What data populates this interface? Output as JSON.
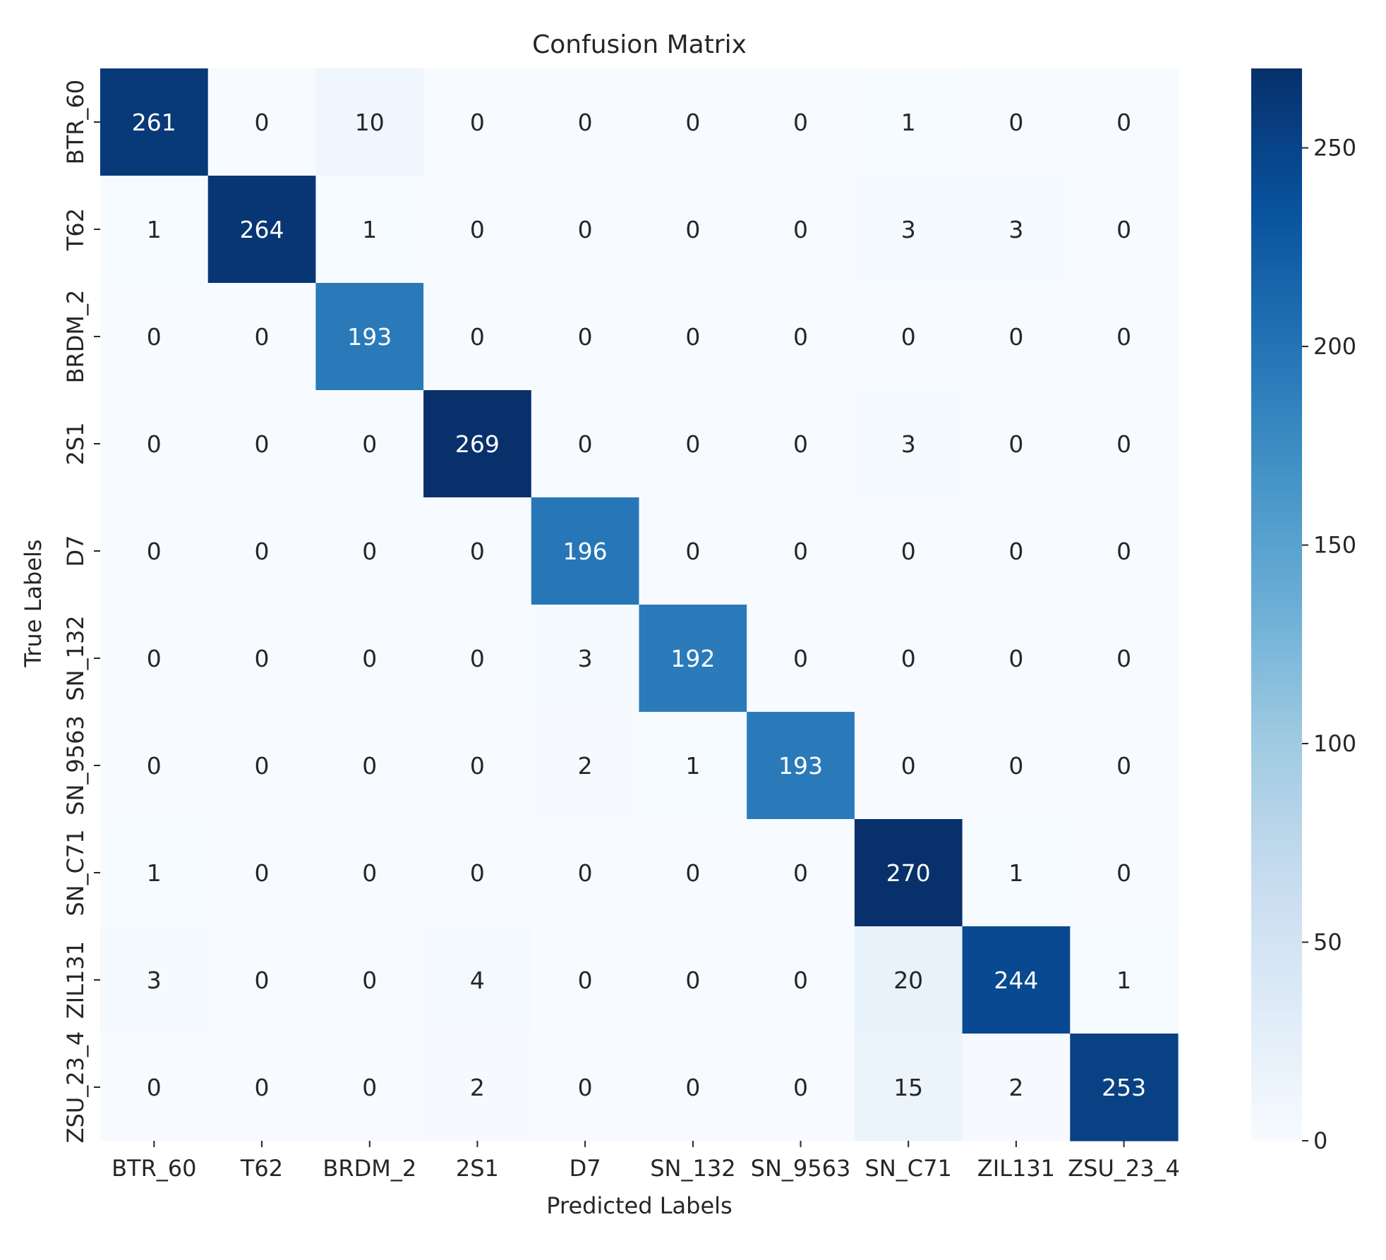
{
  "chart_data": {
    "type": "heatmap",
    "title": "Confusion Matrix",
    "xlabel": "Predicted Labels",
    "ylabel": "True Labels",
    "x_categories": [
      "BTR_60",
      "T62",
      "BRDM_2",
      "2S1",
      "D7",
      "SN_132",
      "SN_9563",
      "SN_C71",
      "ZIL131",
      "ZSU_23_4"
    ],
    "y_categories": [
      "BTR_60",
      "T62",
      "BRDM_2",
      "2S1",
      "D7",
      "SN_132",
      "SN_9563",
      "SN_C71",
      "ZIL131",
      "ZSU_23_4"
    ],
    "values": [
      [
        261,
        0,
        10,
        0,
        0,
        0,
        0,
        1,
        0,
        0
      ],
      [
        1,
        264,
        1,
        0,
        0,
        0,
        0,
        3,
        3,
        0
      ],
      [
        0,
        0,
        193,
        0,
        0,
        0,
        0,
        0,
        0,
        0
      ],
      [
        0,
        0,
        0,
        269,
        0,
        0,
        0,
        3,
        0,
        0
      ],
      [
        0,
        0,
        0,
        0,
        196,
        0,
        0,
        0,
        0,
        0
      ],
      [
        0,
        0,
        0,
        0,
        3,
        192,
        0,
        0,
        0,
        0
      ],
      [
        0,
        0,
        0,
        0,
        2,
        1,
        193,
        0,
        0,
        0
      ],
      [
        1,
        0,
        0,
        0,
        0,
        0,
        0,
        270,
        1,
        0
      ],
      [
        3,
        0,
        0,
        4,
        0,
        0,
        0,
        20,
        244,
        1
      ],
      [
        0,
        0,
        0,
        2,
        0,
        0,
        0,
        15,
        2,
        253
      ]
    ],
    "colormap": "Blues",
    "vmin": 0,
    "vmax": 270,
    "colorbar_ticks": [
      0,
      50,
      100,
      150,
      200,
      250
    ],
    "colors": {
      "low": "#f7fbff",
      "high": "#08306b",
      "text_dark": "#262626",
      "text_light": "#ffffff"
    }
  }
}
